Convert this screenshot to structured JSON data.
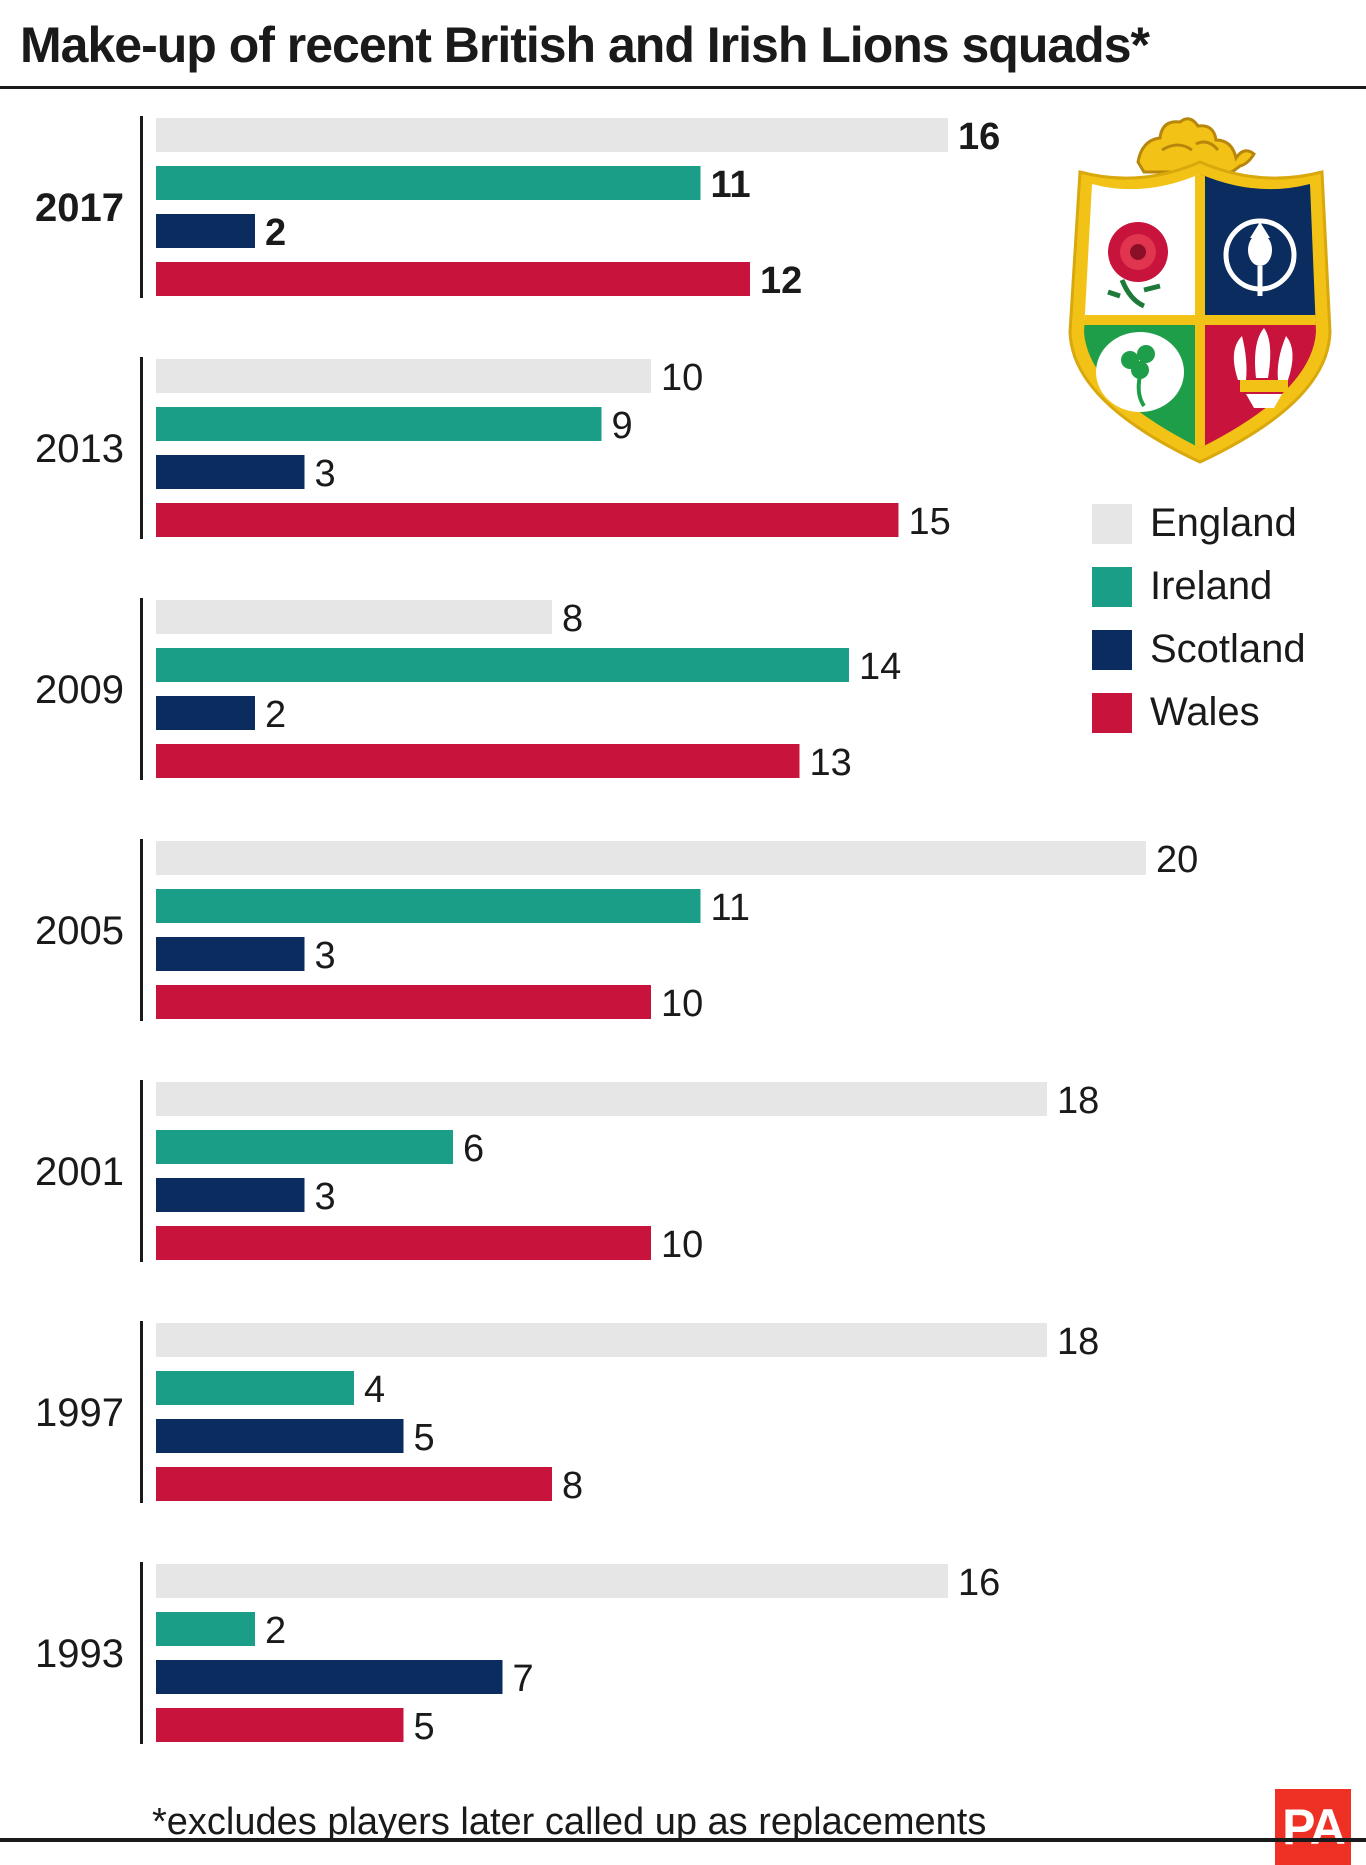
{
  "chart_data": {
    "type": "bar",
    "orientation": "horizontal",
    "title": "Make-up of recent British and Irish Lions squads*",
    "footnote": "*excludes players later called up as replacements",
    "categories": [
      "2017",
      "2013",
      "2009",
      "2005",
      "2001",
      "1997",
      "1993"
    ],
    "highlighted_category": "2017",
    "series": [
      {
        "name": "England",
        "color": "#e6e6e6",
        "values": [
          16,
          10,
          8,
          20,
          18,
          18,
          16
        ]
      },
      {
        "name": "Ireland",
        "color": "#1a9e87",
        "values": [
          11,
          9,
          14,
          11,
          6,
          4,
          2
        ]
      },
      {
        "name": "Scotland",
        "color": "#0b2c5e",
        "values": [
          2,
          3,
          2,
          3,
          3,
          5,
          7
        ]
      },
      {
        "name": "Wales",
        "color": "#c8133c",
        "values": [
          12,
          15,
          13,
          10,
          10,
          8,
          5
        ]
      }
    ],
    "xlim": [
      0,
      20
    ],
    "grid": false,
    "legend_position": "right"
  },
  "branding": {
    "agency_logo": "PA"
  },
  "crest": {
    "icon": "british-irish-lions-crest-icon"
  }
}
